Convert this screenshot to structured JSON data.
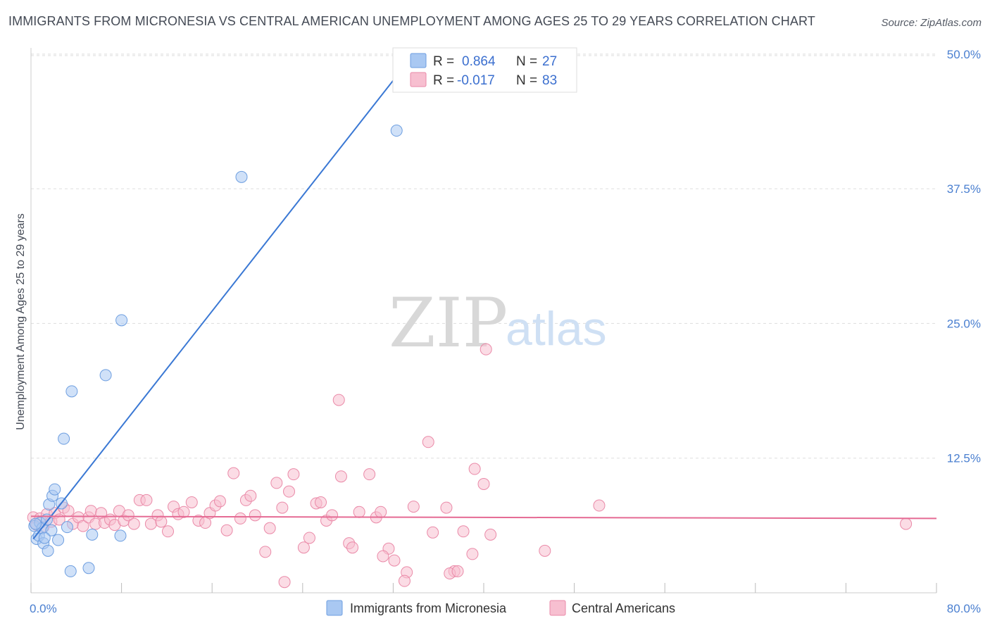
{
  "header": {
    "title": "IMMIGRANTS FROM MICRONESIA VS CENTRAL AMERICAN UNEMPLOYMENT AMONG AGES 25 TO 29 YEARS CORRELATION CHART",
    "source": "Source: ZipAtlas.com"
  },
  "watermark": {
    "zip": "ZIP",
    "atlas": "atlas"
  },
  "legend": {
    "r_label": "R =",
    "n_label": "N =",
    "rows": [
      {
        "r": "0.864",
        "n": "27",
        "color": "#a9c8f2"
      },
      {
        "r": "-0.017",
        "n": "83",
        "color": "#f7bfd0"
      }
    ]
  },
  "colors": {
    "blue_fill": "#a9c8f2",
    "blue_stroke": "#6d9ee0",
    "blue_line": "#3a78d4",
    "pink_fill": "#f7bfd0",
    "pink_stroke": "#ea8aa8",
    "pink_line": "#e56b94",
    "grid": "#dddddd",
    "axis": "#cccccc"
  },
  "chart_data": {
    "type": "scatter",
    "title": "IMMIGRANTS FROM MICRONESIA VS CENTRAL AMERICAN UNEMPLOYMENT AMONG AGES 25 TO 29 YEARS CORRELATION CHART",
    "xlabel": "",
    "ylabel": "Unemployment Among Ages 25 to 29 years",
    "xlim": [
      0,
      80
    ],
    "ylim": [
      0,
      52
    ],
    "x_tick_labels": [
      {
        "value": 0,
        "label": "0.0%"
      },
      {
        "value": 80,
        "label": "80.0%"
      }
    ],
    "y_tick_labels": [
      {
        "value": 12.5,
        "label": "12.5%"
      },
      {
        "value": 25,
        "label": "25.0%"
      },
      {
        "value": 37.5,
        "label": "37.5%"
      },
      {
        "value": 50,
        "label": "50.0%"
      }
    ],
    "grid": true,
    "legend_position": "top-center",
    "series": [
      {
        "name": "Immigrants from Micronesia",
        "r": 0.864,
        "n": 27,
        "trend": {
          "x": [
            0.2,
            34.2
          ],
          "y": [
            5.0,
            50.5
          ]
        },
        "points": [
          [
            0.3,
            6.2
          ],
          [
            0.5,
            5.0
          ],
          [
            0.7,
            5.3
          ],
          [
            0.8,
            6.5
          ],
          [
            1.0,
            6.0
          ],
          [
            1.1,
            4.6
          ],
          [
            1.4,
            6.8
          ],
          [
            1.5,
            3.9
          ],
          [
            1.6,
            8.2
          ],
          [
            1.8,
            5.8
          ],
          [
            1.9,
            9.0
          ],
          [
            2.1,
            9.6
          ],
          [
            2.4,
            4.9
          ],
          [
            2.7,
            8.3
          ],
          [
            2.9,
            14.3
          ],
          [
            3.2,
            6.1
          ],
          [
            3.5,
            2.0
          ],
          [
            3.6,
            18.7
          ],
          [
            5.1,
            2.3
          ],
          [
            5.4,
            5.4
          ],
          [
            6.6,
            20.2
          ],
          [
            7.9,
            5.3
          ],
          [
            8.0,
            25.3
          ],
          [
            18.6,
            38.6
          ],
          [
            32.3,
            42.9
          ],
          [
            0.4,
            6.4
          ],
          [
            1.2,
            5.1
          ]
        ]
      },
      {
        "name": "Central Americans",
        "r": -0.017,
        "n": 83,
        "trend": {
          "x": [
            0,
            80
          ],
          "y": [
            7.1,
            6.9
          ]
        },
        "points": [
          [
            0.2,
            7.0
          ],
          [
            0.5,
            6.3
          ],
          [
            0.8,
            6.9
          ],
          [
            1.1,
            6.1
          ],
          [
            1.4,
            7.3
          ],
          [
            1.8,
            6.6
          ],
          [
            2.1,
            7.4
          ],
          [
            2.5,
            6.8
          ],
          [
            2.9,
            7.9
          ],
          [
            3.3,
            7.6
          ],
          [
            3.7,
            6.4
          ],
          [
            4.2,
            7.0
          ],
          [
            4.6,
            6.2
          ],
          [
            5.1,
            7.0
          ],
          [
            5.3,
            7.6
          ],
          [
            5.7,
            6.4
          ],
          [
            6.2,
            7.4
          ],
          [
            6.5,
            6.5
          ],
          [
            7.0,
            6.8
          ],
          [
            7.4,
            6.3
          ],
          [
            7.8,
            7.6
          ],
          [
            8.2,
            6.7
          ],
          [
            8.6,
            7.2
          ],
          [
            9.1,
            6.4
          ],
          [
            9.6,
            8.6
          ],
          [
            10.2,
            8.6
          ],
          [
            10.6,
            6.4
          ],
          [
            11.2,
            7.2
          ],
          [
            11.5,
            6.6
          ],
          [
            12.1,
            5.7
          ],
          [
            12.6,
            8.0
          ],
          [
            13.0,
            7.3
          ],
          [
            13.5,
            7.5
          ],
          [
            14.2,
            8.4
          ],
          [
            14.8,
            6.7
          ],
          [
            15.4,
            6.5
          ],
          [
            15.8,
            7.4
          ],
          [
            16.3,
            8.1
          ],
          [
            16.7,
            8.5
          ],
          [
            17.3,
            5.8
          ],
          [
            17.9,
            11.1
          ],
          [
            18.5,
            6.9
          ],
          [
            19.0,
            8.6
          ],
          [
            19.4,
            9.0
          ],
          [
            19.8,
            7.2
          ],
          [
            20.7,
            3.8
          ],
          [
            21.1,
            6.0
          ],
          [
            21.7,
            10.2
          ],
          [
            22.2,
            7.9
          ],
          [
            22.8,
            9.4
          ],
          [
            23.2,
            11.0
          ],
          [
            24.1,
            4.2
          ],
          [
            24.6,
            5.1
          ],
          [
            25.2,
            8.3
          ],
          [
            25.6,
            8.4
          ],
          [
            26.1,
            6.7
          ],
          [
            26.6,
            7.2
          ],
          [
            27.2,
            17.9
          ],
          [
            27.4,
            10.8
          ],
          [
            28.1,
            4.6
          ],
          [
            28.4,
            4.2
          ],
          [
            29.0,
            7.5
          ],
          [
            29.9,
            11.0
          ],
          [
            30.5,
            7.0
          ],
          [
            30.9,
            7.5
          ],
          [
            31.6,
            4.1
          ],
          [
            32.1,
            3.0
          ],
          [
            33.2,
            1.9
          ],
          [
            33.8,
            8.0
          ],
          [
            35.1,
            14.0
          ],
          [
            35.5,
            5.6
          ],
          [
            36.7,
            7.9
          ],
          [
            37.4,
            2.0
          ],
          [
            38.2,
            5.7
          ],
          [
            39.0,
            3.6
          ],
          [
            39.2,
            11.5
          ],
          [
            40.0,
            10.1
          ],
          [
            40.6,
            5.4
          ],
          [
            45.4,
            3.9
          ],
          [
            50.2,
            8.1
          ],
          [
            22.4,
            1.0
          ],
          [
            33.0,
            1.1
          ],
          [
            77.3,
            6.4
          ]
        ],
        "extra_points": [
          [
            40.2,
            22.6
          ],
          [
            31.1,
            3.4
          ],
          [
            37.0,
            1.8
          ],
          [
            37.7,
            2.0
          ]
        ]
      }
    ]
  }
}
